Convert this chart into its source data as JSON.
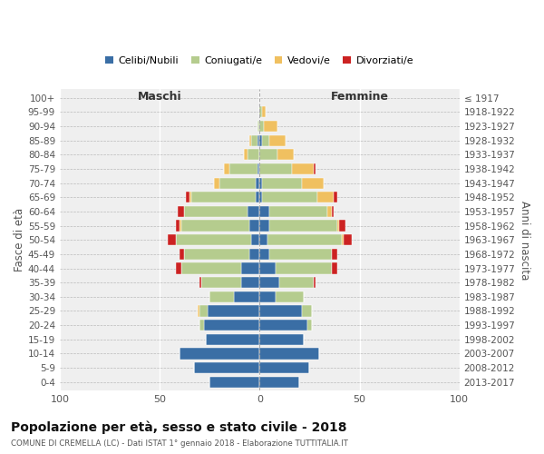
{
  "age_groups": [
    "0-4",
    "5-9",
    "10-14",
    "15-19",
    "20-24",
    "25-29",
    "30-34",
    "35-39",
    "40-44",
    "45-49",
    "50-54",
    "55-59",
    "60-64",
    "65-69",
    "70-74",
    "75-79",
    "80-84",
    "85-89",
    "90-94",
    "95-99",
    "100+"
  ],
  "birth_years": [
    "2013-2017",
    "2008-2012",
    "2003-2007",
    "1998-2002",
    "1993-1997",
    "1988-1992",
    "1983-1987",
    "1978-1982",
    "1973-1977",
    "1968-1972",
    "1963-1967",
    "1958-1962",
    "1953-1957",
    "1948-1952",
    "1943-1947",
    "1938-1942",
    "1933-1937",
    "1928-1932",
    "1923-1927",
    "1918-1922",
    "≤ 1917"
  ],
  "maschi": {
    "celibi": [
      25,
      33,
      40,
      27,
      28,
      26,
      13,
      9,
      9,
      5,
      4,
      5,
      6,
      2,
      2,
      1,
      0,
      1,
      0,
      0,
      0
    ],
    "coniugati": [
      0,
      0,
      0,
      0,
      2,
      4,
      12,
      20,
      30,
      33,
      38,
      34,
      32,
      32,
      18,
      14,
      6,
      3,
      1,
      0,
      0
    ],
    "vedovi": [
      0,
      0,
      0,
      0,
      0,
      1,
      0,
      0,
      0,
      0,
      0,
      1,
      0,
      1,
      3,
      3,
      2,
      1,
      0,
      0,
      0
    ],
    "divorziati": [
      0,
      0,
      0,
      0,
      0,
      0,
      0,
      1,
      3,
      2,
      4,
      2,
      3,
      2,
      0,
      0,
      0,
      0,
      0,
      0,
      0
    ]
  },
  "femmine": {
    "nubili": [
      20,
      25,
      30,
      22,
      24,
      21,
      8,
      10,
      8,
      5,
      4,
      5,
      5,
      1,
      1,
      0,
      0,
      1,
      0,
      0,
      0
    ],
    "coniugate": [
      0,
      0,
      0,
      0,
      2,
      5,
      14,
      17,
      28,
      31,
      37,
      34,
      29,
      28,
      20,
      16,
      9,
      4,
      2,
      1,
      0
    ],
    "vedove": [
      0,
      0,
      0,
      0,
      0,
      0,
      0,
      0,
      0,
      0,
      1,
      1,
      2,
      8,
      11,
      11,
      8,
      8,
      7,
      2,
      0
    ],
    "divorziate": [
      0,
      0,
      0,
      0,
      0,
      0,
      0,
      1,
      3,
      3,
      4,
      3,
      1,
      2,
      0,
      1,
      0,
      0,
      0,
      0,
      0
    ]
  },
  "colors": {
    "celibi_nubili": "#3a6ea5",
    "coniugati": "#b5cc8e",
    "vedovi": "#f0c060",
    "divorziati": "#cc2222"
  },
  "title": "Popolazione per età, sesso e stato civile - 2018",
  "subtitle": "COMUNE DI CREMELLA (LC) - Dati ISTAT 1° gennaio 2018 - Elaborazione TUTTITALIA.IT",
  "xlabel_maschi": "Maschi",
  "xlabel_femmine": "Femmine",
  "ylabel_left": "Fasce di età",
  "ylabel_right": "Anni di nascita",
  "xlim": 100,
  "bg_color": "#efefef",
  "legend_labels": [
    "Celibi/Nubili",
    "Coniugati/e",
    "Vedovi/e",
    "Divorziati/e"
  ]
}
